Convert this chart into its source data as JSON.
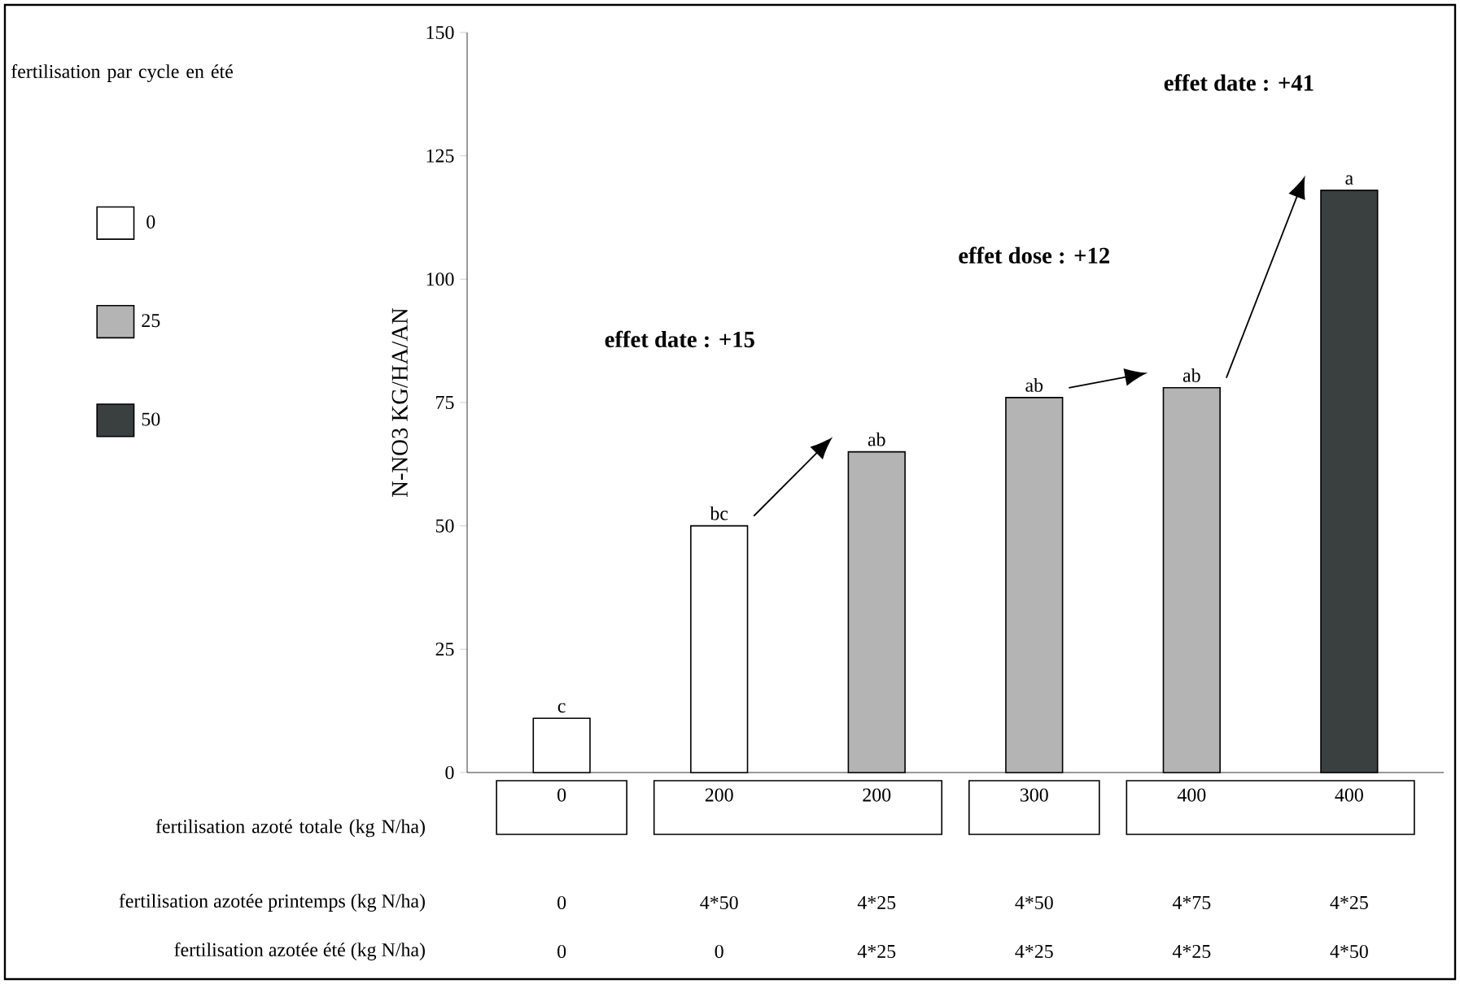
{
  "chart_data": {
    "type": "bar",
    "ylabel": "N-NO3 KG/HA/AN",
    "xlabel": "fertilisation azoté totale (kg N/ha)",
    "legend_title": "fertilisation par cycle en été",
    "categories": [
      "0",
      "200",
      "200",
      "300",
      "400",
      "400"
    ],
    "series": [
      {
        "name": "0",
        "color": "#ffffff",
        "values": [
          11,
          50,
          null,
          null,
          null,
          null
        ],
        "value_labels": [
          "c",
          "bc",
          null,
          null,
          null,
          null
        ]
      },
      {
        "name": "25",
        "color": "#b4b4b4",
        "values": [
          null,
          null,
          65,
          76,
          78,
          null
        ],
        "value_labels": [
          null,
          null,
          "ab",
          "ab",
          "ab",
          null
        ]
      },
      {
        "name": "50",
        "color": "#3a3f3f",
        "values": [
          null,
          null,
          null,
          null,
          null,
          118
        ],
        "value_labels": [
          null,
          null,
          null,
          null,
          null,
          "a"
        ]
      }
    ],
    "ylim": [
      0,
      150
    ],
    "yticks": [
      0,
      25,
      50,
      75,
      100,
      125,
      150
    ],
    "legend": "left",
    "grid": false,
    "annotations": [
      "effet date : +15",
      "effet dose : +12",
      "effet date : +41",
      "fertilisation azotée printemps (kg N/ha)",
      "0",
      "4*50",
      "4*25",
      "4*50",
      "4*75",
      "4*25",
      "fertilisation azotée été (kg N/ha)",
      "0",
      "0",
      "4*25",
      "4*25",
      "4*25",
      "4*50"
    ]
  }
}
